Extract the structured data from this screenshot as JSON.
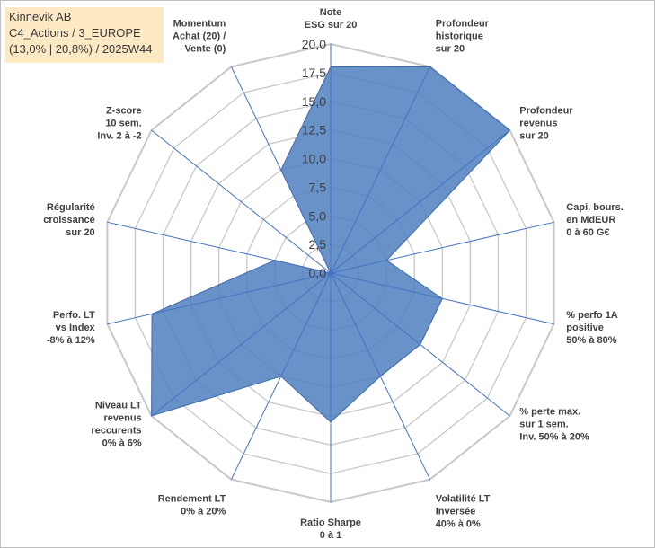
{
  "info": {
    "line1": "Kinnevik AB",
    "line2": "C4_Actions / 3_EUROPE",
    "line3": "(13,0% | 20,8%) / 2025W44"
  },
  "colors": {
    "fill": "#4f7fbf",
    "stroke": "#3e6aa8",
    "grid": "#c8c8c8",
    "spoke": "#4472c4",
    "info_bg": "#fde9c4"
  },
  "chart_data": {
    "type": "radar",
    "rmin": 0,
    "rmax": 20,
    "ticks": [
      "0,0",
      "2,5",
      "5,0",
      "7,5",
      "10,0",
      "12,5",
      "15,0",
      "17,5",
      "20,0"
    ],
    "axes": [
      {
        "label": [
          "Note",
          "ESG sur 20"
        ],
        "value": 18
      },
      {
        "label": [
          "Profondeur",
          "historique",
          "sur 20"
        ],
        "value": 20
      },
      {
        "label": [
          "Profondeur",
          "revenus",
          "sur 20"
        ],
        "value": 20
      },
      {
        "label": [
          "Capi. bours.",
          "en MdEUR",
          "0 à 60 G€"
        ],
        "value": 5
      },
      {
        "label": [
          "% perfo 1A",
          "positive",
          "50% à 80%"
        ],
        "value": 10
      },
      {
        "label": [
          "% perte max.",
          "sur 1 sem.",
          "Inv. 50% à 20%"
        ],
        "value": 10
      },
      {
        "label": [
          "Volatilité LT",
          "Inversée",
          "40% à 0%"
        ],
        "value": 10
      },
      {
        "label": [
          "Ratio Sharpe",
          "0 à 1"
        ],
        "value": 13
      },
      {
        "label": [
          "Rendement LT",
          "0% à 20%"
        ],
        "value": 10
      },
      {
        "label": [
          "Niveau LT",
          "revenus",
          "reccurents",
          "0% à 6%"
        ],
        "value": 20
      },
      {
        "label": [
          "Perfo. LT",
          "vs Index",
          "-8% à 12%"
        ],
        "value": 16
      },
      {
        "label": [
          "Régularité",
          "croissance",
          "sur 20"
        ],
        "value": 5
      },
      {
        "label": [
          "Z-score",
          "10 sem.",
          "Inv. 2 à -2"
        ],
        "value": 0
      },
      {
        "label": [
          "Momentum",
          "Achat (20) /",
          "Vente (0)"
        ],
        "value": 10
      }
    ],
    "grid": true,
    "legend": "none"
  }
}
